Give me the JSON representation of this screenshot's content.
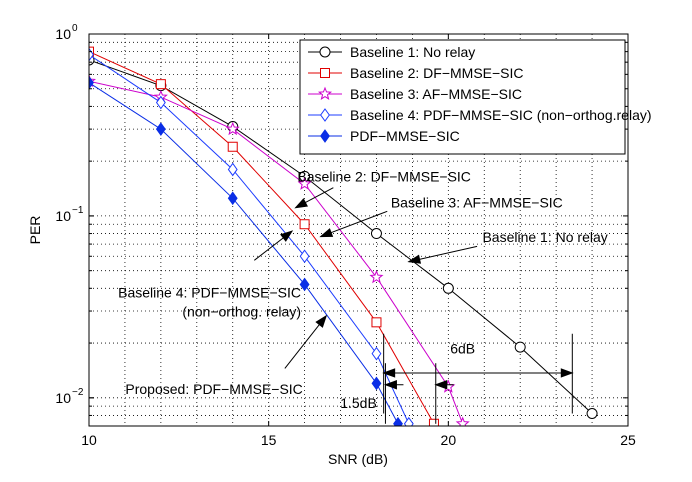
{
  "chart_data": {
    "type": "line",
    "title": "",
    "xlabel": "SNR (dB)",
    "ylabel": "PER",
    "xscale": "linear",
    "yscale": "log",
    "xlim": [
      10,
      25
    ],
    "ylim": [
      0.007,
      1.0
    ],
    "grid": true,
    "legend_position": "top-right",
    "x_ticks": [
      10,
      15,
      20,
      25
    ],
    "x_tick_labels": [
      "10",
      "15",
      "20",
      "25"
    ],
    "y_major_ticks": [
      {
        "value": 0.01,
        "base": "10",
        "exp": "−2"
      },
      {
        "value": 0.1,
        "base": "10",
        "exp": "−1"
      },
      {
        "value": 1.0,
        "base": "10",
        "exp": "0"
      }
    ],
    "series": [
      {
        "name": "Baseline 1: No relay",
        "color": "#000000",
        "marker": "circle",
        "filled": false,
        "x": [
          10,
          12,
          14,
          16,
          18,
          20,
          22,
          24
        ],
        "y": [
          0.72,
          0.52,
          0.31,
          0.165,
          0.08,
          0.04,
          0.019,
          0.0082
        ]
      },
      {
        "name": "Baseline 2: DF−MMSE−SIC",
        "color": "#e00000",
        "marker": "square",
        "filled": false,
        "x": [
          10,
          12,
          14,
          16,
          18,
          19.6
        ],
        "y": [
          0.8,
          0.53,
          0.24,
          0.09,
          0.026,
          0.0072
        ]
      },
      {
        "name": "Baseline 3: AF−MMSE−SIC",
        "color": "#cc00cc",
        "marker": "star",
        "filled": false,
        "x": [
          10,
          12,
          14,
          16,
          18,
          20,
          20.4
        ],
        "y": [
          0.55,
          0.45,
          0.3,
          0.15,
          0.046,
          0.0115,
          0.0072
        ]
      },
      {
        "name": "Baseline 4: PDF−MMSE−SIC (non−orthog.relay)",
        "color": "#1c3cff",
        "marker": "diamond",
        "filled": false,
        "x": [
          10,
          12,
          14,
          16,
          18,
          18.9
        ],
        "y": [
          0.77,
          0.42,
          0.18,
          0.06,
          0.0175,
          0.0072
        ]
      },
      {
        "name": "PDF−MMSE−SIC",
        "color": "#0a2ee6",
        "marker": "diamond",
        "filled": true,
        "x": [
          10,
          12,
          14,
          16,
          18,
          18.6
        ],
        "y": [
          0.54,
          0.3,
          0.125,
          0.042,
          0.012,
          0.0072
        ]
      }
    ],
    "annotations": [
      {
        "lines": [
          "Baseline 2: DF−MMSE−SIC"
        ],
        "anchor": "start",
        "text_at": [
          15.8,
          0.155
        ],
        "line_from": [
          16.8,
          0.143
        ],
        "arrow_to": [
          15.75,
          0.111
        ]
      },
      {
        "lines": [
          "Baseline 3: AF−MMSE−SIC"
        ],
        "anchor": "start",
        "text_at": [
          18.4,
          0.111
        ],
        "line_from": [
          18.3,
          0.106
        ],
        "arrow_to": [
          16.45,
          0.077
        ]
      },
      {
        "lines": [
          "Baseline 1: No relay"
        ],
        "anchor": "start",
        "text_at": [
          20.95,
          0.072
        ],
        "line_from": [
          20.8,
          0.068
        ],
        "arrow_to": [
          18.9,
          0.056
        ]
      },
      {
        "lines": [
          "Baseline 4: PDF−MMSE−SIC",
          "(non−orthog. relay)"
        ],
        "anchor": "end",
        "text_at": [
          15.9,
          0.0355
        ],
        "line_from": [
          14.6,
          0.057
        ],
        "arrow_to": [
          15.65,
          0.0825
        ]
      },
      {
        "lines": [
          "Proposed: PDF−MMSE−SIC"
        ],
        "anchor": "end",
        "text_at": [
          15.95,
          0.0105
        ],
        "line_from": [
          15.45,
          0.0145
        ],
        "arrow_to": [
          16.6,
          0.0282
        ]
      }
    ],
    "gap_markers": [
      {
        "label": "6dB",
        "x1": 18.2,
        "x2": 23.45,
        "y": 0.0137,
        "label_at": [
          20.4,
          0.0175
        ],
        "bar_y_top": 0.0225,
        "bar_y_bottom": 0.0082
      },
      {
        "label": "1.5dB",
        "x1": 18.25,
        "x2": 19.65,
        "y": 0.0118,
        "label_at": [
          17.5,
          0.0088
        ],
        "bar_y_top": 0.0155,
        "bar_y_bottom": 0.0072,
        "arrows_outside": true
      }
    ]
  }
}
